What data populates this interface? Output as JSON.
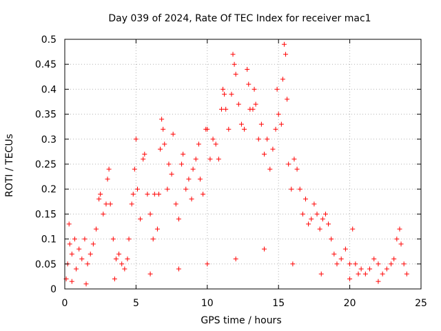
{
  "chart_data": {
    "type": "scatter",
    "title": "Day 039 of 2024, Rate Of TEC Index for receiver mac1",
    "xlabel": "GPS time / hours",
    "ylabel": "ROTI / TECUs",
    "xlim": [
      0,
      25
    ],
    "ylim": [
      0,
      0.5
    ],
    "x_ticks": [
      "0",
      "5",
      "10",
      "15",
      "20",
      "25"
    ],
    "y_ticks": [
      "0",
      "0.05",
      "0.1",
      "0.15",
      "0.2",
      "0.25",
      "0.3",
      "0.35",
      "0.4",
      "0.45",
      "0.5"
    ],
    "grid": true,
    "marker": "+",
    "color": "#ff0000",
    "series": [
      {
        "points": [
          [
            0.1,
            0.02
          ],
          [
            0.2,
            0.05
          ],
          [
            0.3,
            0.13
          ],
          [
            0.35,
            0.09
          ],
          [
            0.5,
            0.07
          ],
          [
            0.7,
            0.1
          ],
          [
            0.8,
            0.04
          ],
          [
            1.0,
            0.08
          ],
          [
            1.2,
            0.06
          ],
          [
            1.4,
            0.1
          ],
          [
            1.6,
            0.05
          ],
          [
            1.8,
            0.07
          ],
          [
            2.0,
            0.09
          ],
          [
            2.2,
            0.12
          ],
          [
            2.4,
            0.18
          ],
          [
            2.5,
            0.19
          ],
          [
            2.7,
            0.15
          ],
          [
            2.9,
            0.17
          ],
          [
            3.0,
            0.22
          ],
          [
            3.1,
            0.24
          ],
          [
            3.2,
            0.17
          ],
          [
            3.4,
            0.1
          ],
          [
            3.6,
            0.06
          ],
          [
            3.8,
            0.07
          ],
          [
            4.0,
            0.05
          ],
          [
            4.2,
            0.04
          ],
          [
            4.4,
            0.06
          ],
          [
            4.5,
            0.1
          ],
          [
            4.7,
            0.17
          ],
          [
            4.8,
            0.19
          ],
          [
            4.9,
            0.24
          ],
          [
            5.0,
            0.3
          ],
          [
            5.1,
            0.2
          ],
          [
            5.3,
            0.14
          ],
          [
            5.5,
            0.26
          ],
          [
            5.6,
            0.27
          ],
          [
            5.8,
            0.19
          ],
          [
            6.0,
            0.15
          ],
          [
            6.2,
            0.1
          ],
          [
            6.3,
            0.19
          ],
          [
            6.5,
            0.12
          ],
          [
            6.6,
            0.19
          ],
          [
            6.7,
            0.28
          ],
          [
            6.8,
            0.34
          ],
          [
            6.9,
            0.32
          ],
          [
            7.0,
            0.29
          ],
          [
            7.2,
            0.2
          ],
          [
            7.3,
            0.25
          ],
          [
            7.5,
            0.23
          ],
          [
            7.6,
            0.31
          ],
          [
            7.8,
            0.17
          ],
          [
            8.0,
            0.14
          ],
          [
            8.2,
            0.25
          ],
          [
            8.3,
            0.27
          ],
          [
            8.5,
            0.2
          ],
          [
            8.7,
            0.22
          ],
          [
            8.9,
            0.18
          ],
          [
            9.0,
            0.24
          ],
          [
            9.2,
            0.26
          ],
          [
            9.4,
            0.29
          ],
          [
            9.5,
            0.22
          ],
          [
            9.7,
            0.19
          ],
          [
            9.9,
            0.32
          ],
          [
            10.0,
            0.32
          ],
          [
            10.2,
            0.26
          ],
          [
            10.4,
            0.3
          ],
          [
            10.6,
            0.29
          ],
          [
            10.8,
            0.26
          ],
          [
            11.0,
            0.36
          ],
          [
            11.1,
            0.4
          ],
          [
            11.2,
            0.39
          ],
          [
            11.3,
            0.36
          ],
          [
            11.5,
            0.32
          ],
          [
            11.7,
            0.39
          ],
          [
            11.8,
            0.47
          ],
          [
            11.9,
            0.45
          ],
          [
            12.0,
            0.43
          ],
          [
            12.2,
            0.37
          ],
          [
            12.4,
            0.33
          ],
          [
            12.6,
            0.32
          ],
          [
            12.8,
            0.44
          ],
          [
            12.9,
            0.41
          ],
          [
            13.0,
            0.36
          ],
          [
            13.2,
            0.36
          ],
          [
            13.3,
            0.4
          ],
          [
            13.4,
            0.37
          ],
          [
            13.6,
            0.3
          ],
          [
            13.8,
            0.33
          ],
          [
            14.0,
            0.27
          ],
          [
            14.2,
            0.3
          ],
          [
            14.4,
            0.24
          ],
          [
            14.6,
            0.28
          ],
          [
            14.8,
            0.32
          ],
          [
            14.9,
            0.4
          ],
          [
            15.0,
            0.35
          ],
          [
            15.2,
            0.33
          ],
          [
            15.3,
            0.42
          ],
          [
            15.4,
            0.49
          ],
          [
            15.5,
            0.47
          ],
          [
            15.6,
            0.38
          ],
          [
            15.7,
            0.25
          ],
          [
            15.9,
            0.2
          ],
          [
            16.1,
            0.26
          ],
          [
            16.3,
            0.24
          ],
          [
            16.5,
            0.2
          ],
          [
            16.7,
            0.15
          ],
          [
            16.9,
            0.18
          ],
          [
            17.1,
            0.13
          ],
          [
            17.3,
            0.14
          ],
          [
            17.5,
            0.17
          ],
          [
            17.7,
            0.15
          ],
          [
            17.9,
            0.12
          ],
          [
            18.1,
            0.14
          ],
          [
            18.3,
            0.15
          ],
          [
            18.5,
            0.13
          ],
          [
            18.7,
            0.1
          ],
          [
            18.9,
            0.07
          ],
          [
            19.1,
            0.05
          ],
          [
            19.4,
            0.06
          ],
          [
            19.7,
            0.08
          ],
          [
            20.0,
            0.05
          ],
          [
            20.2,
            0.12
          ],
          [
            20.4,
            0.05
          ],
          [
            20.6,
            0.03
          ],
          [
            20.8,
            0.04
          ],
          [
            21.1,
            0.03
          ],
          [
            21.4,
            0.04
          ],
          [
            21.7,
            0.06
          ],
          [
            22.0,
            0.05
          ],
          [
            22.3,
            0.03
          ],
          [
            22.6,
            0.04
          ],
          [
            22.9,
            0.05
          ],
          [
            23.1,
            0.06
          ],
          [
            23.3,
            0.1
          ],
          [
            23.5,
            0.12
          ],
          [
            23.6,
            0.09
          ],
          [
            23.8,
            0.05
          ],
          [
            24.0,
            0.03
          ],
          [
            0.5,
            0.015
          ],
          [
            1.5,
            0.01
          ],
          [
            3.5,
            0.02
          ],
          [
            6.0,
            0.03
          ],
          [
            8.0,
            0.04
          ],
          [
            10.0,
            0.05
          ],
          [
            12.0,
            0.06
          ],
          [
            14.0,
            0.08
          ],
          [
            16.0,
            0.05
          ],
          [
            18.0,
            0.03
          ],
          [
            20.0,
            0.02
          ],
          [
            22.0,
            0.015
          ]
        ]
      }
    ]
  }
}
